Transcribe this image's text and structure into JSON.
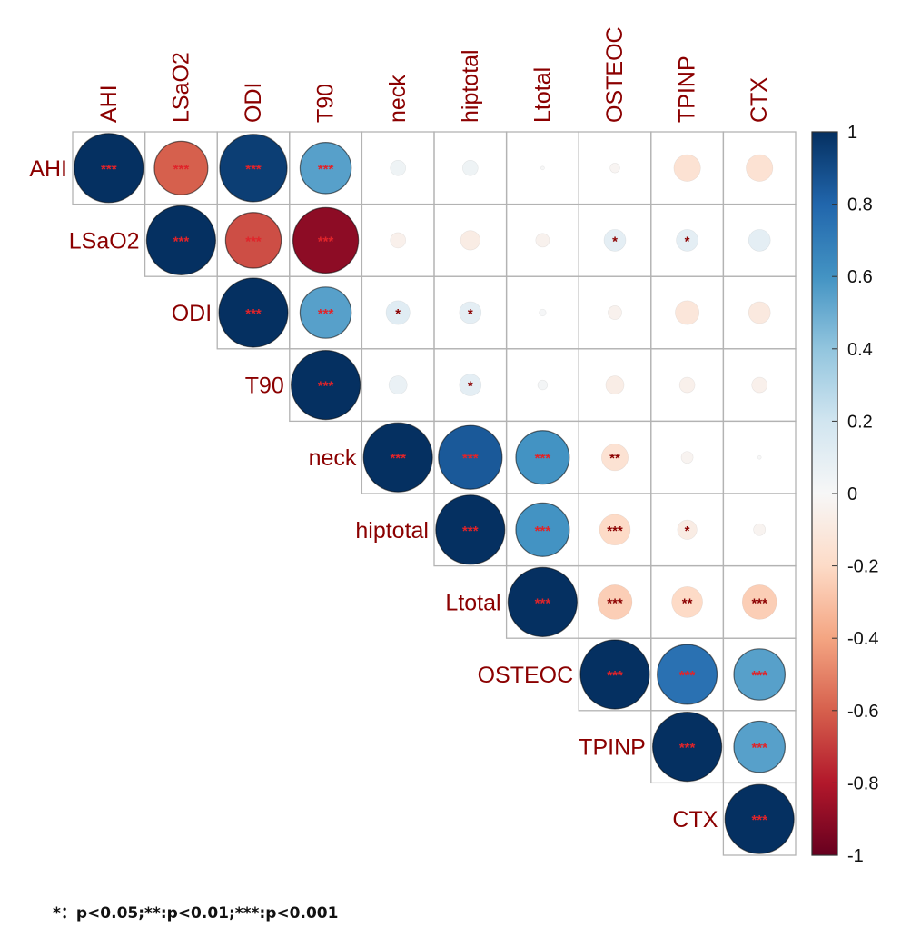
{
  "chart_data": {
    "type": "heatmap",
    "variables": [
      "AHI",
      "LSaO2",
      "ODI",
      "T90",
      "neck",
      "hiptotal",
      "Ltotal",
      "OSTEOC",
      "TPINP",
      "CTX"
    ],
    "matrix_type": "upper-triangle correlation",
    "values": [
      [
        1,
        -0.6,
        0.95,
        0.55,
        0.05,
        0.05,
        0.0,
        -0.02,
        -0.15,
        -0.15
      ],
      [
        null,
        1,
        -0.65,
        -0.9,
        -0.05,
        -0.08,
        -0.04,
        0.1,
        0.1,
        0.1
      ],
      [
        null,
        null,
        1,
        0.55,
        0.12,
        0.1,
        0.01,
        -0.04,
        -0.12,
        -0.1
      ],
      [
        null,
        null,
        null,
        1,
        0.07,
        0.1,
        0.02,
        -0.07,
        -0.05,
        -0.05
      ],
      [
        null,
        null,
        null,
        null,
        1,
        0.85,
        0.6,
        -0.15,
        -0.03,
        0.0
      ],
      [
        null,
        null,
        null,
        null,
        null,
        1,
        0.6,
        -0.2,
        -0.08,
        -0.03
      ],
      [
        null,
        null,
        null,
        null,
        null,
        null,
        1,
        -0.25,
        -0.2,
        -0.25
      ],
      [
        null,
        null,
        null,
        null,
        null,
        null,
        null,
        1,
        0.75,
        0.55
      ],
      [
        null,
        null,
        null,
        null,
        null,
        null,
        null,
        null,
        1,
        0.55
      ],
      [
        null,
        null,
        null,
        null,
        null,
        null,
        null,
        null,
        null,
        1
      ]
    ],
    "significance": [
      [
        "***",
        "***",
        "***",
        "***",
        "",
        "",
        "",
        "",
        "",
        ""
      ],
      [
        "",
        "***",
        "***",
        "***",
        "",
        "",
        "",
        "*",
        "*",
        ""
      ],
      [
        "",
        "",
        "***",
        "***",
        "*",
        "*",
        "",
        "",
        "",
        ""
      ],
      [
        "",
        "",
        "",
        "***",
        "",
        "*",
        "",
        "",
        "",
        ""
      ],
      [
        "",
        "",
        "",
        "",
        "***",
        "***",
        "***",
        "**",
        "",
        ""
      ],
      [
        "",
        "",
        "",
        "",
        "",
        "***",
        "***",
        "***",
        "*",
        ""
      ],
      [
        "",
        "",
        "",
        "",
        "",
        "",
        "***",
        "***",
        "**",
        "***"
      ],
      [
        "",
        "",
        "",
        "",
        "",
        "",
        "",
        "***",
        "***",
        "***"
      ],
      [
        "",
        "",
        "",
        "",
        "",
        "",
        "",
        "",
        "***",
        "***"
      ],
      [
        "",
        "",
        "",
        "",
        "",
        "",
        "",
        "",
        "",
        "***"
      ]
    ],
    "legend": {
      "ticks": [
        "1",
        "0.8",
        "0.6",
        "0.4",
        "0.2",
        "0",
        "-0.2",
        "-0.4",
        "-0.6",
        "-0.8",
        "-1"
      ],
      "placement": "right",
      "range": [
        -1,
        1
      ]
    },
    "colors": {
      "strong_positive": "#053061",
      "positive_mid": "#4393c3",
      "neutral": "#f7f7f7",
      "negative_mid": "#d6604d",
      "strong_negative": "#67001f",
      "label": "#8b0000",
      "significance_mark": "#e0242a",
      "grid": "#b3b3b3"
    },
    "footnote": "*：p<0.05;**:p<0.01;***:p<0.001"
  }
}
